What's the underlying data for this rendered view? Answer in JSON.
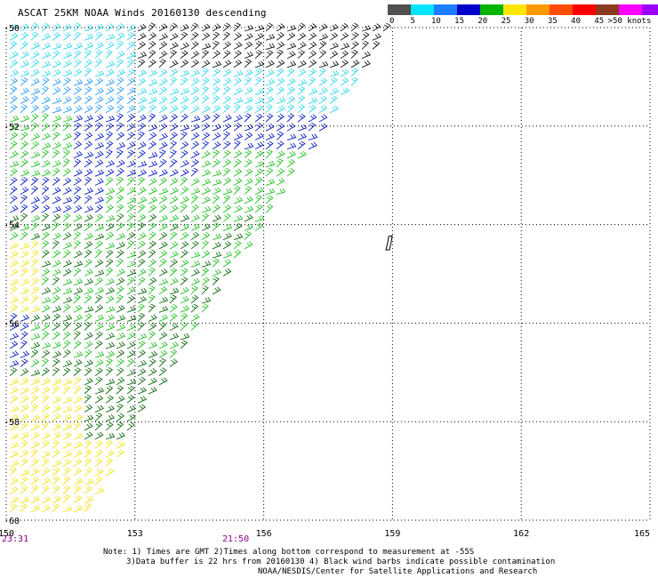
{
  "header": {
    "title": "ASCAT 25KM NOAA Winds 20160130 descending"
  },
  "legend": {
    "colors": [
      "#505050",
      "#00e5ff",
      "#1e7cff",
      "#0000c8",
      "#00b400",
      "#ffe600",
      "#ff9900",
      "#ff4c00",
      "#ff0000",
      "#8b3a20",
      "#ff00ff",
      "#9b00ff",
      "#4b0082"
    ],
    "labels": [
      "0",
      "5",
      "10",
      "15",
      "20",
      "25",
      "30",
      "35",
      "40",
      "45",
      ">50 knots"
    ]
  },
  "map": {
    "lon_ticks": [
      "150",
      "153",
      "156",
      "159",
      "162",
      "165"
    ],
    "lat_ticks": [
      "-50",
      "-52",
      "-54",
      "-56",
      "-58",
      "-60"
    ],
    "grid": "dotted",
    "lon_range": [
      150,
      165
    ],
    "lat_range": [
      -50,
      -60
    ]
  },
  "times": {
    "left": "23:31",
    "middle": "21:50"
  },
  "notes": {
    "line1": "Note: 1) Times are GMT 2)Times along bottom correspond to measurement at -55S",
    "line2": "3)Data buffer is 22 hrs from 20160130 4) Black wind barbs indicate possible contamination",
    "line3": "NOAA/NESDIS/Center for Satellite Applications and Research"
  }
}
